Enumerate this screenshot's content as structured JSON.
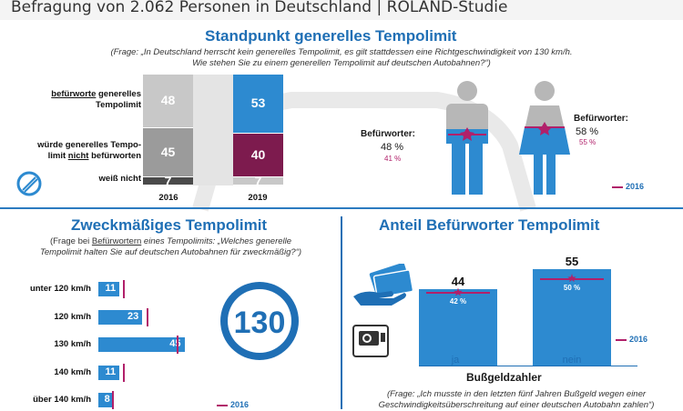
{
  "header": {
    "text": "Befragung von 2.062 Personen in Deutschland | ROLAND-Studie"
  },
  "colors": {
    "blue": "#2d8ad0",
    "title_blue": "#1f6fb5",
    "magenta": "#7d1b4e",
    "pink": "#b1206a",
    "gray_light": "#c8c8c8",
    "gray_mid": "#9b9b9b",
    "gray_dark": "#4a4a4a"
  },
  "section1": {
    "title": "Standpunkt generelles Tempolimit",
    "question_line1": "(Frage: „In Deutschland herrscht kein generelles Tempolimit, es gilt stattdessen eine Richtgeschwindigkeit von 130 km/h.",
    "question_line2": "Wie stehen Sie zu einem generellen Tempolimit auf deutschen Autobahnen?“)",
    "label_pro_u": "befürworte",
    "label_pro_rest": " generelles",
    "label_pro_line2": "Tempolimit",
    "label_contra_line1": "würde generelles Tempo-",
    "label_contra_pre": "limit ",
    "label_contra_u": "nicht",
    "label_contra_post": " befürworten",
    "label_dk": "weiß nicht",
    "icon": "no-speed-limit-sign-icon",
    "gender": {
      "male_label": "Befürworter:",
      "male_value": "48 %",
      "male_2016": "41 %",
      "female_label": "Befürworter:",
      "female_value": "58 %",
      "female_2016": "55 %",
      "male_icon": "man-icon",
      "female_icon": "woman-icon"
    },
    "legend_2016": "2016"
  },
  "section2": {
    "title": "Zweckmäßiges Tempolimit",
    "question_pre": "(Frage bei ",
    "question_u": "Befürwortern",
    "question_post": " eines Tempolimits: „Welches generelle",
    "question_line2": "Tempolimit halten Sie auf deutschen Autobahnen für zweckmäßig?“)",
    "sign_value": "130",
    "sign_icon": "speed-limit-130-sign-icon",
    "legend_2016": "2016"
  },
  "section3": {
    "title": "Anteil Befürworter Tempolimit",
    "xlabel": "Bußgeldzahler",
    "question_line1": "(Frage: „Ich musste in den letzten fünf Jahren Bußgeld wegen einer",
    "question_line2": "Geschwindigkeitsüberschreitung auf einer deutschen Autobahn zahlen“)",
    "icons": [
      "money-hand-icon",
      "speed-camera-icon"
    ],
    "legend_2016": "2016"
  },
  "chart_data": [
    {
      "type": "bar",
      "title": "Standpunkt generelles Tempolimit",
      "categories": [
        "2016",
        "2019"
      ],
      "stacked": true,
      "series": [
        {
          "name": "befürworte generelles Tempolimit",
          "values": [
            48,
            53
          ]
        },
        {
          "name": "würde generelles Tempolimit nicht befürworten",
          "values": [
            45,
            40
          ]
        },
        {
          "name": "weiß nicht",
          "values": [
            7,
            7
          ]
        }
      ],
      "value_labels": {
        "2016": [
          "48",
          "45",
          "7"
        ],
        "2019": [
          "53",
          "40",
          "7"
        ]
      }
    },
    {
      "type": "bar",
      "orientation": "horizontal",
      "title": "Zweckmäßiges Tempolimit",
      "categories": [
        "unter 120 km/h",
        "120 km/h",
        "130 km/h",
        "140 km/h",
        "über 140 km/h"
      ],
      "series": [
        {
          "name": "2019",
          "values": [
            11,
            23,
            45,
            11,
            8
          ]
        },
        {
          "name": "2016",
          "values": [
            13,
            25,
            41,
            13,
            7
          ]
        }
      ],
      "value_labels": [
        "11",
        "23",
        "45",
        "11",
        "8"
      ],
      "xlim": [
        0,
        50
      ]
    },
    {
      "type": "bar",
      "title": "Anteil Befürworter Tempolimit",
      "categories": [
        "ja",
        "nein"
      ],
      "series": [
        {
          "name": "2019",
          "values": [
            44,
            55
          ]
        },
        {
          "name": "2016",
          "values": [
            42,
            50
          ]
        }
      ],
      "value_labels": [
        "44",
        "55"
      ],
      "value_labels_2016": [
        "42 %",
        "50 %"
      ],
      "ylim": [
        0,
        60
      ]
    }
  ]
}
